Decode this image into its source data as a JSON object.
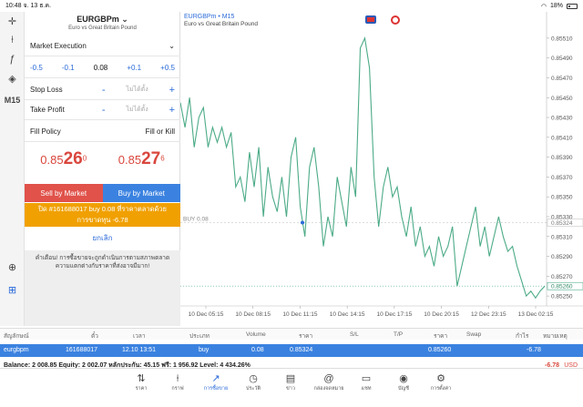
{
  "status": {
    "time": "10:48",
    "date": "จ. 13 ธ.ค.",
    "battery": "18%"
  },
  "tools": [
    {
      "name": "crosshair-icon",
      "glyph": "✛"
    },
    {
      "name": "candles-icon",
      "glyph": "⍿"
    },
    {
      "name": "indicator-icon",
      "glyph": "ƒ"
    },
    {
      "name": "objects-icon",
      "glyph": "◈"
    },
    {
      "name": "timeframe-label",
      "glyph": "M15"
    },
    {
      "name": "zoom-icon",
      "glyph": "⊕"
    },
    {
      "name": "new-order-icon",
      "glyph": "⊞"
    }
  ],
  "order": {
    "symbol": "EURGBPm",
    "chevron": "⌄",
    "description": "Euro vs Great Britain Pound",
    "execution": "Market Execution",
    "volumes": [
      "-0.5",
      "-0.1",
      "0.08",
      "+0.1",
      "+0.5"
    ],
    "stop_loss_label": "Stop Loss",
    "take_profit_label": "Take Profit",
    "not_set": "ไม่ได้ตั้ง",
    "minus": "-",
    "plus": "+",
    "fill_policy_label": "Fill Policy",
    "fill_policy_value": "Fill or Kill",
    "bid": {
      "a": "0.85",
      "b": "26",
      "c": "0"
    },
    "ask": {
      "a": "0.85",
      "b": "27",
      "c": "6"
    },
    "sell_label": "Sell by Market",
    "buy_label": "Buy by Market",
    "close_label_1": "ปิด #161688017 buy 0.08 ที่ราคาตลาดด้วย",
    "close_label_2": "การขาดทุน -6.78",
    "cancel_label": "ยกเลิก",
    "warning_1": "คำเตือน! การซื้อขายจะถูกดำเนินการตามสภาพตลาด",
    "warning_2": "ความแตกต่างกับราคาที่ส่งอาจมีมาก!"
  },
  "chart": {
    "symbol_tf": "EURGBPm • M15",
    "description": "Euro vs Great Britain Pound",
    "buy_line_label": "BUY 0.08",
    "buy_level_tag": "0.85324",
    "current_tag": "0.85260"
  },
  "chart_data": {
    "type": "line",
    "x_ticks": [
      "10 Dec 05:15",
      "10 Dec 08:15",
      "10 Dec 11:15",
      "10 Dec 14:15",
      "10 Dec 17:15",
      "10 Dec 20:15",
      "12 Dec 23:15",
      "13 Dec 02:15"
    ],
    "y_ticks": [
      "0.85510",
      "0.85490",
      "0.85470",
      "0.85450",
      "0.85430",
      "0.85410",
      "0.85390",
      "0.85370",
      "0.85350",
      "0.85330",
      "0.85310",
      "0.85290",
      "0.85270",
      "0.85250"
    ],
    "ylim": [
      0.8524,
      0.8552
    ],
    "series": [
      {
        "color": "#4cab87",
        "values": [
          0.85445,
          0.8542,
          0.8545,
          0.854,
          0.8543,
          0.8544,
          0.854,
          0.8542,
          0.85405,
          0.8542,
          0.854,
          0.85415,
          0.8536,
          0.8537,
          0.85345,
          0.85395,
          0.8536,
          0.854,
          0.8533,
          0.8538,
          0.8535,
          0.85335,
          0.8537,
          0.8533,
          0.8539,
          0.8541,
          0.8534,
          0.8531,
          0.8538,
          0.854,
          0.8536,
          0.853,
          0.8533,
          0.8531,
          0.8537,
          0.85345,
          0.8532,
          0.8538,
          0.8535,
          0.855,
          0.8551,
          0.8548,
          0.8537,
          0.8532,
          0.8536,
          0.8538,
          0.8535,
          0.8536,
          0.8533,
          0.8531,
          0.8534,
          0.853,
          0.8532,
          0.8529,
          0.853,
          0.8528,
          0.8531,
          0.8529,
          0.853,
          0.8532,
          0.8526,
          0.8528,
          0.853,
          0.8532,
          0.8534,
          0.853,
          0.8532,
          0.8529,
          0.8531,
          0.8533,
          0.8531,
          0.85295,
          0.853,
          0.8528,
          0.85265,
          0.8525,
          0.85255,
          0.85248,
          0.85255,
          0.8526
        ]
      }
    ],
    "buy_price": 0.85324,
    "current_price": 0.8526
  },
  "table": {
    "headers": [
      "สัญลักษณ์",
      "ตั๋ว",
      "เวลา",
      "ประเภท",
      "Volume",
      "ราคา",
      "S/L",
      "T/P",
      "ราคา",
      "Swap",
      "กำไร",
      "หมายเหตุ"
    ],
    "row": {
      "symbol": "eurgbpm",
      "ticket": "161688017",
      "time": "12.10 13:51",
      "type": "buy",
      "volume": "0.08",
      "price": "0.85324",
      "sl": "",
      "tp": "",
      "cur": "0.85260",
      "swap": "",
      "profit": "-6.78",
      "note": ""
    }
  },
  "balance": {
    "text": "Balance: 2 008.85 Equity: 2 002.07 หลักประกัน: 45.15 ฟรี: 1 956.92 Level: 4 434.26%",
    "pl": "-6.78",
    "currency": "USD"
  },
  "tabs": [
    {
      "name": "quotes",
      "label": "ราคา",
      "glyph": "⇅"
    },
    {
      "name": "chart",
      "label": "กราฟ",
      "glyph": "⍿"
    },
    {
      "name": "trade",
      "label": "การซื้อขาย",
      "glyph": "↗"
    },
    {
      "name": "history",
      "label": "ประวัติ",
      "glyph": "◷"
    },
    {
      "name": "news",
      "label": "ข่าว",
      "glyph": "▤"
    },
    {
      "name": "mailbox",
      "label": "กล่องจดหมาย",
      "glyph": "@"
    },
    {
      "name": "chat",
      "label": "แชท",
      "glyph": "▭"
    },
    {
      "name": "accounts",
      "label": "บัญชี",
      "glyph": "◉"
    },
    {
      "name": "settings",
      "label": "การตั้งค่า",
      "glyph": "⚙"
    }
  ]
}
